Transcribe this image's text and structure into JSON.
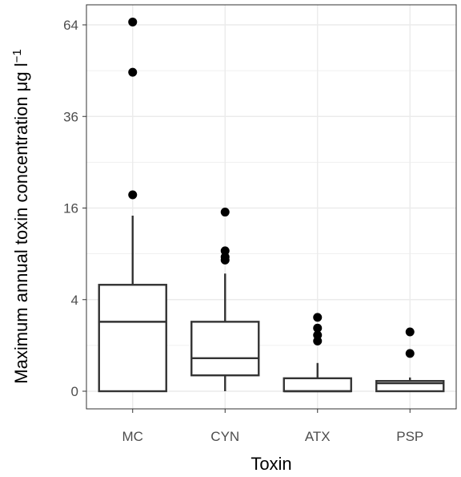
{
  "chart_data": {
    "type": "box",
    "title": "",
    "xlabel": "Toxin",
    "ylabel": "Maximum annual toxin concentration μg l",
    "ylabel_superscript": "−1",
    "y_scale": "sqrt",
    "ylim": [
      0,
      70
    ],
    "y_ticks": [
      0,
      4,
      16,
      36,
      64
    ],
    "y_tick_labels": [
      "0",
      "4",
      "16",
      "36",
      "64"
    ],
    "grid": true,
    "categories": [
      "MC",
      "CYN",
      "ATX",
      "PSP"
    ],
    "boxes": [
      {
        "category": "MC",
        "whisker_low": 0,
        "q1": 0,
        "median": 2.3,
        "q3": 5.4,
        "whisker_high": 14.7,
        "outliers": [
          18.4,
          48.5,
          65.0
        ]
      },
      {
        "category": "CYN",
        "whisker_low": 0,
        "q1": 0.12,
        "median": 0.52,
        "q3": 2.3,
        "whisker_high": 6.6,
        "outliers": [
          8.2,
          8.6,
          9.4,
          15.3
        ]
      },
      {
        "category": "ATX",
        "whisker_low": 0,
        "q1": 0,
        "median": 0,
        "q3": 0.08,
        "whisker_high": 0.38,
        "outliers": [
          1.2,
          1.5,
          1.9,
          2.6
        ]
      },
      {
        "category": "PSP",
        "whisker_low": 0,
        "q1": 0,
        "median": 0.03,
        "q3": 0.05,
        "whisker_high": 0.09,
        "outliers": [
          0.68,
          1.68
        ]
      }
    ],
    "colors": {
      "background": "#ffffff",
      "grid": "#ebebeb",
      "box_line": "#333333",
      "point": "#000000",
      "axis_text": "#4d4d4d"
    }
  }
}
